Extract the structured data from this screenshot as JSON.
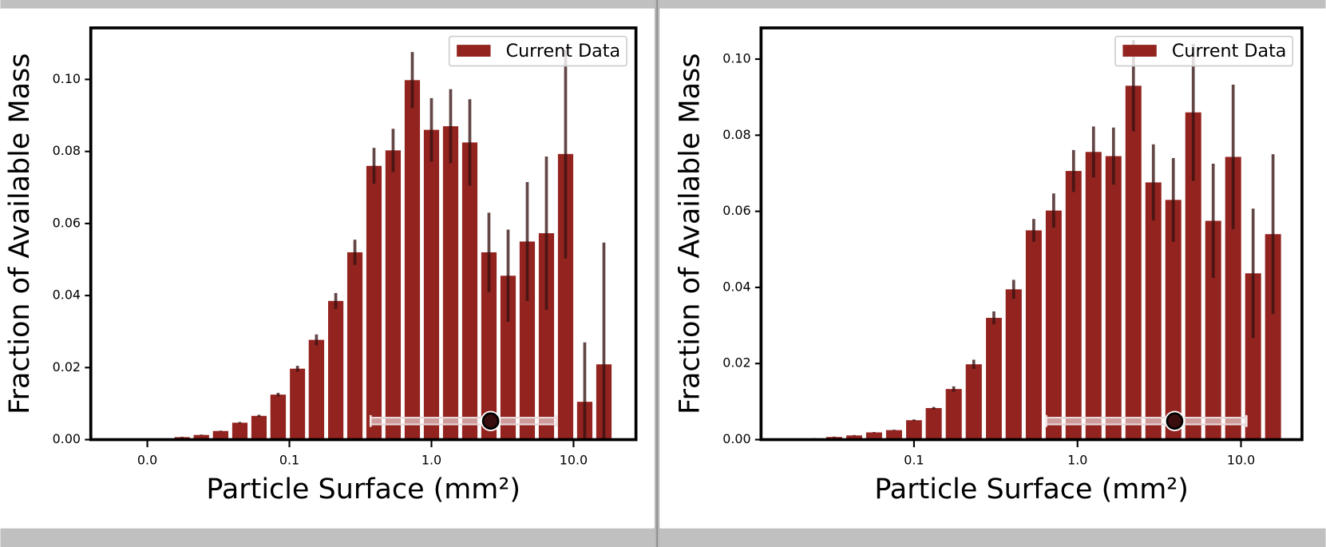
{
  "chart_data": [
    {
      "type": "bar",
      "xscale": "log",
      "xlabel": "Particle Surface (mm²)",
      "ylabel": "Fraction of Available Mass",
      "legend": "upper right",
      "xlim": [
        0.004,
        27.5
      ],
      "ylim": [
        0,
        0.1143
      ],
      "xticks": [
        {
          "value": 0.01,
          "label": "0.0"
        },
        {
          "value": 0.1,
          "label": "0.1"
        },
        {
          "value": 1,
          "label": "1.0"
        },
        {
          "value": 10,
          "label": "10.0"
        }
      ],
      "yticks": [
        {
          "value": 0,
          "label": "0.00"
        },
        {
          "value": 0.02,
          "label": "0.02"
        },
        {
          "value": 0.04,
          "label": "0.04"
        },
        {
          "value": 0.06,
          "label": "0.06"
        },
        {
          "value": 0.08,
          "label": "0.08"
        },
        {
          "value": 0.1,
          "label": "0.10"
        }
      ],
      "x": [
        0.00947,
        0.0129,
        0.0176,
        0.024,
        0.0328,
        0.0448,
        0.0611,
        0.0833,
        0.114,
        0.155,
        0.212,
        0.289,
        0.394,
        0.537,
        0.733,
        1.0,
        1.364,
        1.861,
        2.538,
        3.463,
        4.724,
        6.444,
        8.791,
        11.99,
        16.36
      ],
      "series": [
        {
          "name": "Current Data",
          "color": "#92231f",
          "values": [
            0.0001,
            0.0002,
            0.0007,
            0.0013,
            0.0024,
            0.0047,
            0.0066,
            0.0125,
            0.0197,
            0.0277,
            0.0385,
            0.052,
            0.076,
            0.0803,
            0.0998,
            0.086,
            0.087,
            0.0825,
            0.052,
            0.0455,
            0.055,
            0.0573,
            0.0793,
            0.0105,
            0.0209
          ],
          "errors": [
            0.0001,
            0.0001,
            0.0001,
            0.0001,
            0.0001,
            0.0002,
            0.0003,
            0.0005,
            0.0008,
            0.0015,
            0.0022,
            0.0035,
            0.005,
            0.006,
            0.0078,
            0.0088,
            0.0103,
            0.012,
            0.011,
            0.0128,
            0.0165,
            0.0213,
            0.029,
            0.0165,
            0.0338
          ]
        }
      ],
      "interval": {
        "low": 0.373,
        "mid": 2.61,
        "high": 7.6
      }
    },
    {
      "type": "bar",
      "xscale": "log",
      "xlabel": "Particle Surface (mm²)",
      "ylabel": "Fraction of Available Mass",
      "legend": "upper right",
      "xlim": [
        0.0116,
        23.6
      ],
      "ylim": [
        0,
        0.1082
      ],
      "xticks": [
        0.1,
        {
          "value": 1,
          "label": "1.0"
        },
        {
          "value": 10,
          "label": "10.0"
        }
      ],
      "yticks": [
        {
          "value": 0,
          "label": "0.00"
        },
        {
          "value": 0.02,
          "label": "0.02"
        },
        {
          "value": 0.04,
          "label": "0.04"
        },
        {
          "value": 0.06,
          "label": "0.06"
        },
        {
          "value": 0.08,
          "label": "0.08"
        },
        {
          "value": 0.1,
          "label": "0.10"
        }
      ],
      "x": [
        0.0185,
        0.0245,
        0.0325,
        0.0431,
        0.057,
        0.0755,
        0.1,
        0.132,
        0.175,
        0.232,
        0.308,
        0.407,
        0.54,
        0.715,
        0.946,
        1.253,
        1.66,
        2.198,
        2.911,
        3.855,
        5.105,
        6.761,
        8.954,
        11.86,
        15.7
      ],
      "series": [
        {
          "name": "Current Data",
          "color": "#92231f",
          "values": [
            0.0001,
            0.0003,
            0.0007,
            0.0011,
            0.0019,
            0.0025,
            0.0051,
            0.0083,
            0.0133,
            0.0198,
            0.032,
            0.0395,
            0.055,
            0.0602,
            0.0706,
            0.0756,
            0.0745,
            0.093,
            0.0676,
            0.063,
            0.086,
            0.0575,
            0.0743,
            0.0437,
            0.054
          ],
          "errors": [
            0.0001,
            0.0001,
            0.0001,
            0.0001,
            0.0001,
            0.0001,
            0.0002,
            0.0003,
            0.0007,
            0.0012,
            0.0017,
            0.0025,
            0.003,
            0.0045,
            0.0055,
            0.0067,
            0.0075,
            0.012,
            0.01,
            0.011,
            0.018,
            0.015,
            0.019,
            0.017,
            0.021
          ]
        }
      ],
      "interval": {
        "low": 0.644,
        "mid": 3.93,
        "high": 10.8
      }
    }
  ]
}
